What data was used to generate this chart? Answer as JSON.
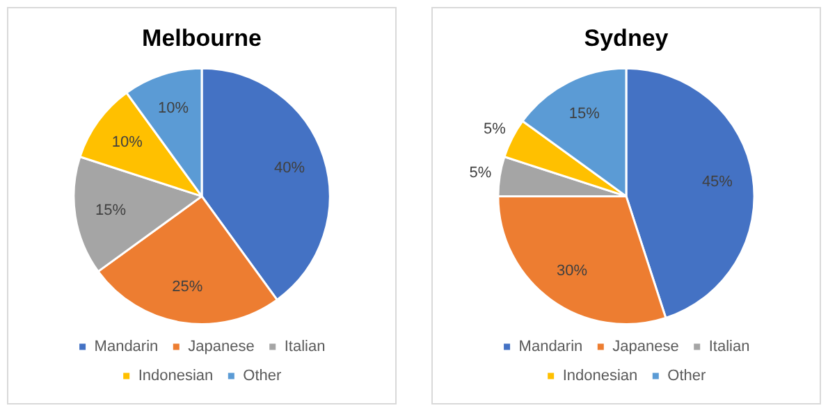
{
  "chart_data": [
    {
      "type": "pie",
      "title": "Melbourne",
      "categories": [
        "Mandarin",
        "Japanese",
        "Italian",
        "Indonesian",
        "Other"
      ],
      "values": [
        40,
        25,
        15,
        10,
        10
      ],
      "colors": [
        "#4472c4",
        "#ed7d31",
        "#a5a5a5",
        "#ffc000",
        "#5b9bd5"
      ],
      "value_labels": [
        "40%",
        "25%",
        "15%",
        "10%",
        "10%"
      ],
      "legend": "bottom"
    },
    {
      "type": "pie",
      "title": "Sydney",
      "categories": [
        "Mandarin",
        "Japanese",
        "Italian",
        "Indonesian",
        "Other"
      ],
      "values": [
        45,
        30,
        5,
        5,
        15
      ],
      "colors": [
        "#4472c4",
        "#ed7d31",
        "#a5a5a5",
        "#ffc000",
        "#5b9bd5"
      ],
      "value_labels": [
        "45%",
        "30%",
        "5%",
        "5%",
        "15%"
      ],
      "legend": "bottom"
    }
  ]
}
